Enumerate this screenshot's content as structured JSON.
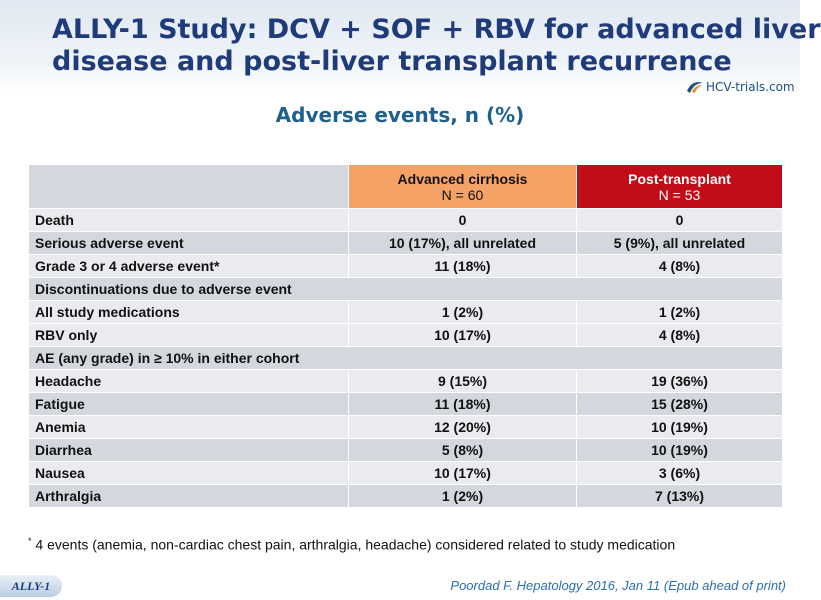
{
  "slide": {
    "title_line1": "ALLY-1 Study: DCV + SOF + RBV for advanced liver",
    "title_line2": "disease and post-liver transplant recurrence",
    "logo_text": "HCV-trials.com",
    "subtitle": "Adverse events, n (%)",
    "study_tag": "ALLY-1",
    "citation": "Poordad F. Hepatology 2016, Jan 11 (Epub ahead of print)",
    "footnote_marker": "*",
    "footnote": " 4 events (anemia, non-cardiac chest pain, arthralgia, headache) considered related to study medication"
  },
  "colors": {
    "title": "#1f3b7a",
    "subtitle": "#1d5f8e",
    "advanced_cirrhosis_header": "#f5a266",
    "post_transplant_header": "#c00d17",
    "row_light": "#e9ebee",
    "row_dark": "#d4d8de",
    "citation": "#2a6fb0"
  },
  "table": {
    "columns": [
      {
        "name": "Advanced cirrhosis",
        "n": "N = 60"
      },
      {
        "name": "Post-transplant",
        "n": "N = 53"
      }
    ],
    "rows": [
      {
        "label": "Death",
        "adv": "0",
        "post": "0"
      },
      {
        "label": "Serious adverse event",
        "adv": "10 (17%), all unrelated",
        "post": "5 (9%), all unrelated"
      },
      {
        "label": "Grade 3 or 4 adverse event*",
        "adv": "11 (18%)",
        "post": "4 (8%)"
      },
      {
        "label": "Discontinuations due to adverse event"
      },
      {
        "label": "All study medications",
        "adv": "1 (2%)",
        "post": "1 (2%)"
      },
      {
        "label": "RBV only",
        "adv": "10 (17%)",
        "post": "4 (8%)"
      },
      {
        "label": "AE (any grade) in ≥ 10% in either cohort"
      },
      {
        "label": "Headache",
        "adv": "9 (15%)",
        "post": "19 (36%)"
      },
      {
        "label": "Fatigue",
        "adv": "11 (18%)",
        "post": "15 (28%)"
      },
      {
        "label": "Anemia",
        "adv": "12 (20%)",
        "post": "10 (19%)"
      },
      {
        "label": "Diarrhea",
        "adv": "5 (8%)",
        "post": "10 (19%)"
      },
      {
        "label": "Nausea",
        "adv": "10 (17%)",
        "post": "3 (6%)"
      },
      {
        "label": "Arthralgia",
        "adv": "1 (2%)",
        "post": "7 (13%)"
      }
    ]
  }
}
